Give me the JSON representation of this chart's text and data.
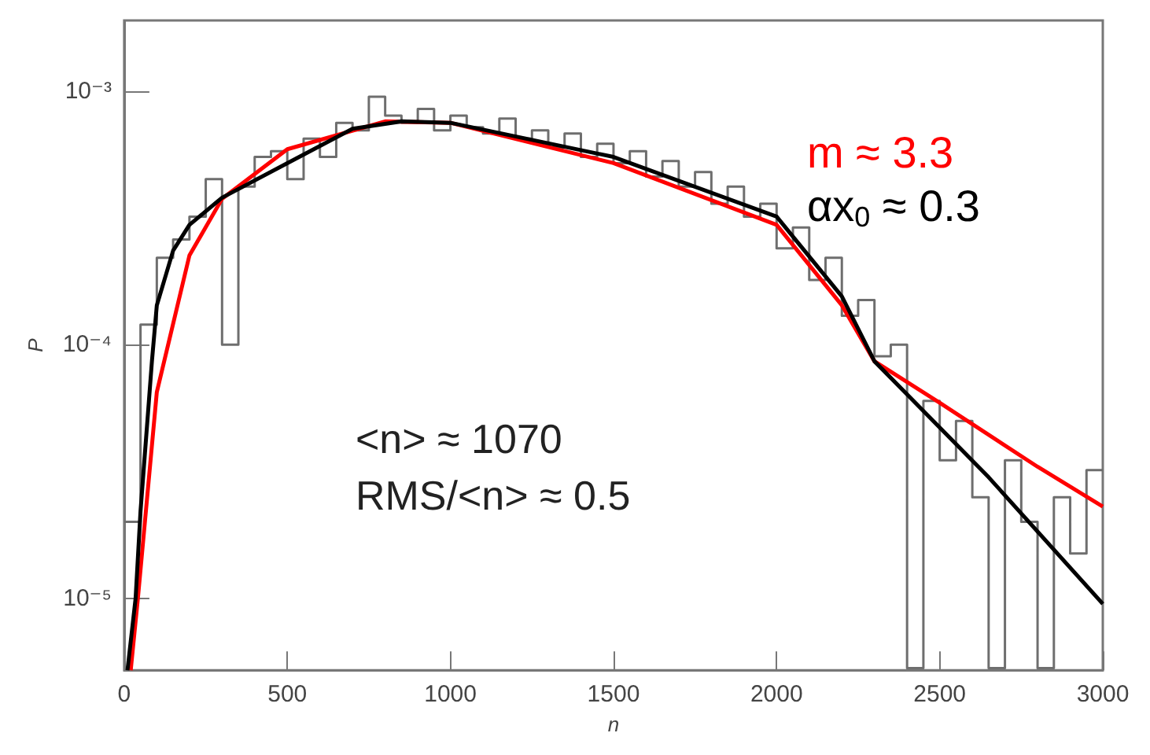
{
  "chart_data": {
    "type": "histogram",
    "xlabel": "n",
    "ylabel": "P",
    "bins": [
      0,
      50,
      100,
      150,
      200,
      250,
      300,
      350,
      400,
      450,
      500,
      550,
      600,
      650,
      700,
      750,
      800,
      850,
      900,
      950,
      1000,
      1050,
      1100,
      1150,
      1200,
      1250,
      1300,
      1350,
      1400,
      1450,
      1500,
      1550,
      1600,
      1650,
      1700,
      1750,
      1800,
      1850,
      1900,
      1950,
      2000,
      2050,
      2100,
      2150,
      2200,
      2250,
      2300,
      2350,
      2400,
      2450,
      2500,
      2550,
      2600,
      2650,
      2700,
      2750,
      2800,
      2850,
      2900,
      2950,
      3000
    ],
    "values": [
      2e-05,
      0.00012,
      0.00022,
      0.00026,
      0.00032,
      0.00045,
      0.0001,
      0.00042,
      0.00055,
      0.00058,
      0.00045,
      0.00065,
      0.00055,
      0.00075,
      0.0007,
      0.00095,
      0.0008,
      0.00075,
      0.00085,
      0.0007,
      0.0008,
      0.00072,
      0.00068,
      0.00078,
      0.00065,
      0.0007,
      0.0006,
      0.00068,
      0.00055,
      0.00062,
      0.00052,
      0.00058,
      0.00046,
      0.00053,
      0.00042,
      0.00048,
      0.00036,
      0.00042,
      0.00032,
      0.00036,
      0.00024,
      0.00029,
      0.00018,
      0.00022,
      0.00013,
      0.00015,
      9e-05,
      0.0001,
      5.3e-06,
      6e-05,
      3.5e-05,
      5e-05,
      2.5e-05,
      5.3e-06,
      3.5e-05,
      2e-05,
      5.3e-06,
      2.5e-05,
      1.5e-05,
      3.2e-05
    ],
    "color": "#6e6e6e",
    "series": [
      {
        "type": "line",
        "name": "m ≈ 3.3",
        "color": "#ff0000",
        "x": [
          20,
          42,
          100,
          200,
          300,
          500,
          800,
          1000,
          1500,
          2000,
          2200,
          2300,
          2500,
          2800,
          3000
        ],
        "values": [
          5.2e-06,
          1e-05,
          6.5e-05,
          0.000225,
          0.000376,
          0.00059,
          0.00076,
          0.00075,
          0.00052,
          0.000297,
          0.000143,
          8.6e-05,
          5.9e-05,
          3.3e-05,
          2.3e-05
        ]
      },
      {
        "type": "line",
        "name": "αx$_{0}$ ≈ 0.3",
        "color": "#000000",
        "x": [
          10,
          35,
          50,
          85,
          100,
          150,
          200,
          300,
          500,
          700,
          850,
          1000,
          1500,
          2000,
          2200,
          2300,
          2650,
          3000
        ],
        "values": [
          5.2e-06,
          1e-05,
          2.2e-05,
          8.6e-05,
          0.000143,
          0.000235,
          0.000297,
          0.00038,
          0.00052,
          0.00071,
          0.00076,
          0.00075,
          0.00055,
          0.00032,
          0.000155,
          8.6e-05,
          3e-05,
          9.5e-06
        ]
      }
    ],
    "annotations": [
      "<n> ≈ 1070",
      "RMS/<n> ≈ 0.5"
    ],
    "legend": "top right",
    "grid": false,
    "log": "y",
    "marker": "none",
    "xlim": [
      0,
      3000
    ],
    "xticks": [
      0,
      500,
      1000,
      1500,
      2000,
      2500,
      3000
    ],
    "ylim": [
      5.2e-06,
      0.0019
    ],
    "yticks": [
      {
        "value": 0.001,
        "label": "10⁻³"
      },
      {
        "value": 0.0001,
        "label": "10⁻⁴"
      },
      {
        "value": 1e-05,
        "label": "10⁻⁵"
      }
    ]
  }
}
